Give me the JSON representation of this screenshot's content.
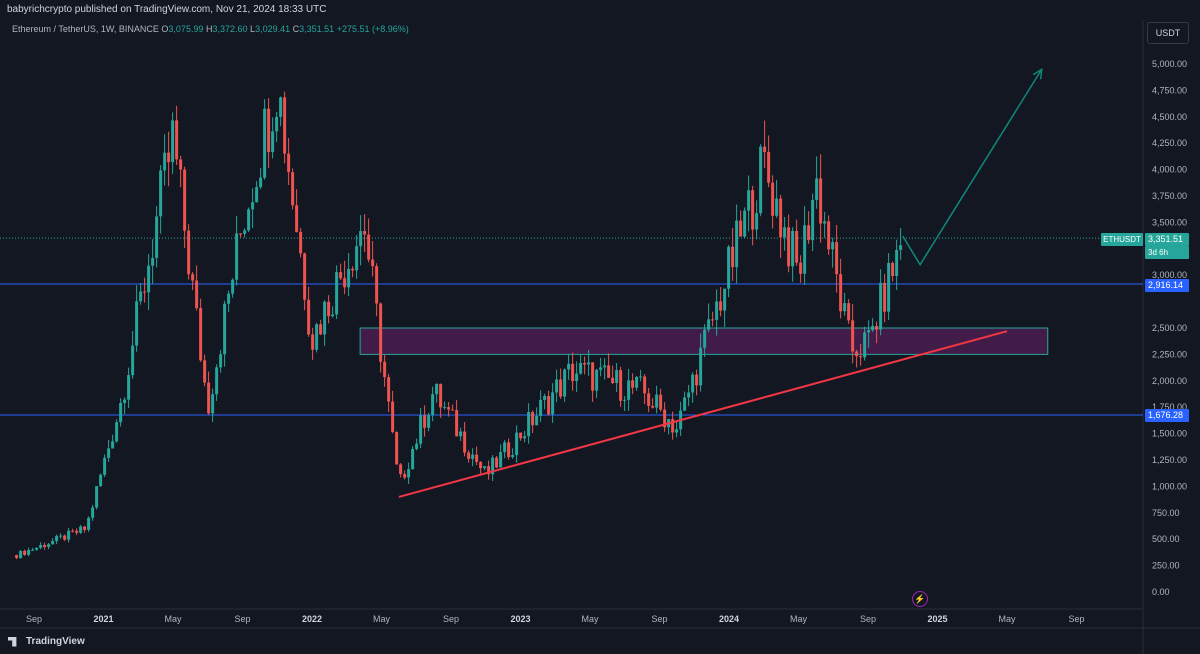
{
  "header": {
    "publisher": "babyrichcrypto published on TradingView.com, Nov 21, 2024 18:33 UTC"
  },
  "legend": {
    "symbol": "Ethereum / TetherUS, 1W, BINANCE",
    "open_label": "O",
    "open": "3,075.99",
    "high_label": "H",
    "high": "3,372.60",
    "low_label": "L",
    "low": "3,029.41",
    "close_label": "C",
    "close": "3,351.51",
    "change": "+275.51 (+8.96%)"
  },
  "price_axis": {
    "currency": "USDT",
    "ticks": [
      "5,000.00",
      "4,750.00",
      "4,500.00",
      "4,250.00",
      "4,000.00",
      "3,750.00",
      "3,500.00",
      "3,000.00",
      "2,500.00",
      "2,250.00",
      "2,000.00",
      "1,750.00",
      "1,500.00",
      "1,250.00",
      "1,000.00",
      "750.00",
      "500.00",
      "250.00",
      "0.00"
    ],
    "current_price": "3,351.51",
    "countdown": "3d 6h",
    "symbol_tag": "ETHUSDT",
    "level_upper": "2,916.14",
    "level_lower": "1,676.28"
  },
  "time_axis": {
    "labels": [
      "Sep",
      "2021",
      "May",
      "Sep",
      "2022",
      "May",
      "Sep",
      "2023",
      "May",
      "Sep",
      "2024",
      "May",
      "Sep",
      "2025",
      "May",
      "Sep"
    ]
  },
  "footer": {
    "brand": "TradingView"
  },
  "colors": {
    "up": "#26a69a",
    "down": "#ef5350",
    "level": "#2962ff",
    "zone": "#4a1d4f",
    "trend": "#f23645",
    "arrow": "#0d8a7a"
  },
  "chart_data": {
    "type": "candlestick",
    "title": "Ethereum / TetherUS, 1W, BINANCE",
    "ylim": [
      0,
      5000
    ],
    "price_levels": [
      2916.14,
      1676.28
    ],
    "support_zone": [
      2250,
      2500
    ],
    "trendline": {
      "from": {
        "date": "2022-06",
        "price": 900
      },
      "to": {
        "date": "2025-05",
        "price": 2470
      }
    },
    "projection": [
      {
        "date": "2024-11",
        "price": 3370
      },
      {
        "date": "2024-12",
        "price": 3100
      },
      {
        "date": "2025-07",
        "price": 4950
      }
    ],
    "key_prices": [
      {
        "date": "2020-08",
        "price": 350
      },
      {
        "date": "2020-12",
        "price": 600
      },
      {
        "date": "2021-02",
        "price": 1800
      },
      {
        "date": "2021-05",
        "price": 4300
      },
      {
        "date": "2021-07",
        "price": 1750
      },
      {
        "date": "2021-09",
        "price": 3500
      },
      {
        "date": "2021-11",
        "price": 4850
      },
      {
        "date": "2022-01",
        "price": 2400
      },
      {
        "date": "2022-04",
        "price": 3500
      },
      {
        "date": "2022-06",
        "price": 1000
      },
      {
        "date": "2022-08",
        "price": 1900
      },
      {
        "date": "2022-11",
        "price": 1100
      },
      {
        "date": "2023-04",
        "price": 2100
      },
      {
        "date": "2023-08",
        "price": 1900
      },
      {
        "date": "2023-10",
        "price": 1550
      },
      {
        "date": "2024-03",
        "price": 4050
      },
      {
        "date": "2024-05",
        "price": 3000
      },
      {
        "date": "2024-06",
        "price": 3900
      },
      {
        "date": "2024-08",
        "price": 2300
      },
      {
        "date": "2024-09",
        "price": 2350
      },
      {
        "date": "2024-11",
        "price": 3351.51
      }
    ]
  }
}
